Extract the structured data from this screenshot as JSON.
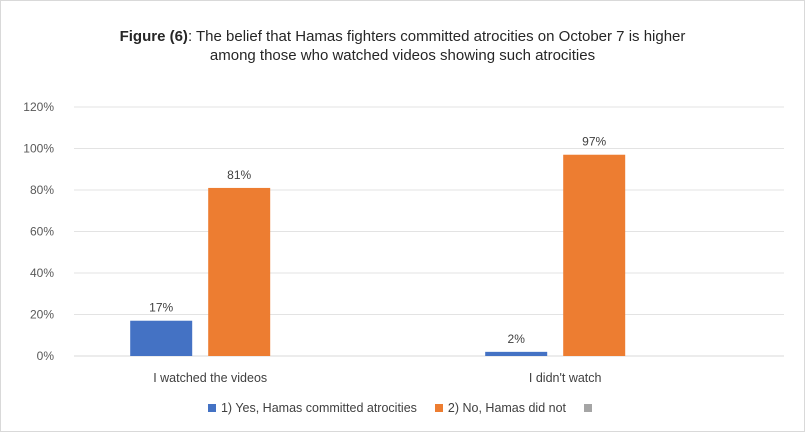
{
  "chart_data": {
    "type": "bar",
    "title_bold": "Figure (6)",
    "title_line1_rest": ": The belief that Hamas fighters committed atrocities on October 7 is higher",
    "title_line2": "among those who watched videos showing such atrocities",
    "xlabel": "",
    "ylabel": "",
    "categories": [
      "I watched the videos",
      "I didn't watch"
    ],
    "series": [
      {
        "name": "1) Yes, Hamas committed atrocities",
        "values": [
          17,
          2
        ],
        "labels": [
          "17%",
          "2%"
        ],
        "color": "#4472c4"
      },
      {
        "name": "2) No, Hamas did not",
        "values": [
          81,
          97
        ],
        "labels": [
          "81%",
          "97%"
        ],
        "color": "#ed7d31"
      },
      {
        "name": "",
        "values": [
          null,
          null
        ],
        "labels": [
          "",
          ""
        ],
        "color": "#a5a5a5"
      }
    ],
    "ylim": [
      0,
      120
    ],
    "yticks": [
      0,
      20,
      40,
      60,
      80,
      100,
      120
    ],
    "ytick_labels": [
      "0%",
      "20%",
      "40%",
      "60%",
      "80%",
      "100%",
      "120%"
    ],
    "grid": true,
    "legend_position": "bottom"
  }
}
